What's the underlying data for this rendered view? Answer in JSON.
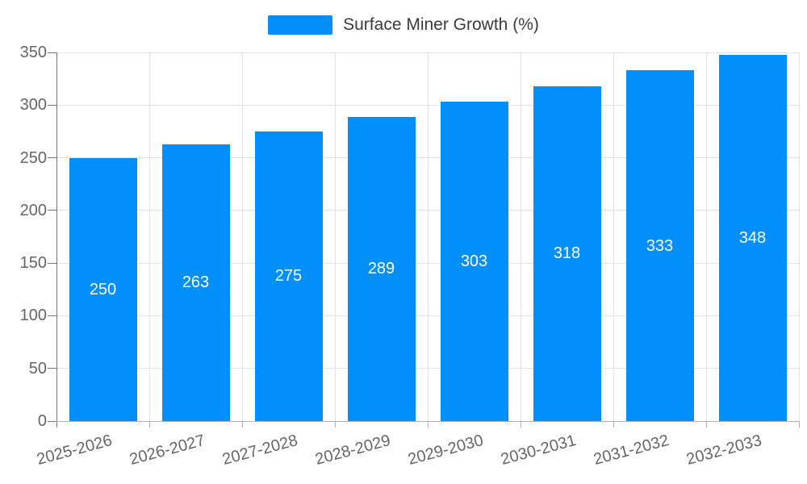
{
  "legend": {
    "label": "Surface Miner Growth (%)"
  },
  "chart_data": {
    "type": "bar",
    "title": "",
    "categories": [
      "2025-2026",
      "2026-2027",
      "2027-2028",
      "2028-2029",
      "2029-2030",
      "2030-2031",
      "2031-2032",
      "2032-2033"
    ],
    "series": [
      {
        "name": "Surface Miner Growth (%)",
        "values": [
          250,
          263,
          275,
          289,
          303,
          318,
          333,
          348
        ]
      }
    ],
    "xlabel": "",
    "ylabel": "",
    "ylim": [
      0,
      350
    ],
    "yticks": [
      0,
      50,
      100,
      150,
      200,
      250,
      300,
      350
    ],
    "grid": true,
    "legend_position": "top",
    "x_label_rotation_deg": -15,
    "colors": {
      "bar": "#008FFB",
      "bar_value_text": "#ffffff",
      "axis_text": "#666666",
      "legend_text": "#373d3f",
      "gridline": "#e3e3e3",
      "y_axis_line": "#78787c",
      "x_axis_line": "#b0b0b5"
    }
  }
}
